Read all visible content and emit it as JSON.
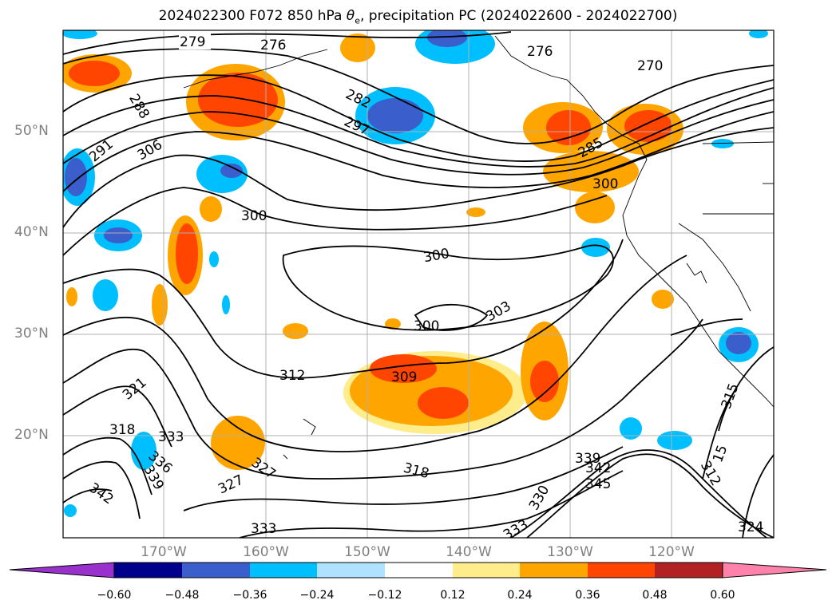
{
  "title_prefix": "2024022300 F072 850 hPa ",
  "title_symbol": "θ",
  "title_subscript": "e",
  "title_suffix": ", precipitation PC (2024022600 - 2024022700)",
  "lat_labels": [
    "50°N",
    "40°N",
    "30°N",
    "20°N"
  ],
  "lon_labels": [
    "170°W",
    "160°W",
    "150°W",
    "140°W",
    "130°W",
    "120°W"
  ],
  "contour_labels": [
    "279",
    "276",
    "288",
    "291",
    "306",
    "282",
    "297",
    "276",
    "270",
    "285",
    "300",
    "300",
    "300",
    "303",
    "300",
    "309",
    "312",
    "321",
    "318",
    "333",
    "336",
    "339",
    "342",
    "327",
    "327",
    "318",
    "330",
    "333",
    "339",
    "342",
    "345",
    "315",
    "312",
    "324",
    "333",
    "15"
  ],
  "colorbar": {
    "ticks": [
      "−0.60",
      "−0.48",
      "−0.36",
      "−0.24",
      "−0.12",
      "0.12",
      "0.24",
      "0.36",
      "0.48",
      "0.60"
    ],
    "colors": [
      "#9932cc",
      "#00008b",
      "#3a5fcd",
      "#00bfff",
      "#b0e2ff",
      "#ffffff",
      "#ffec8b",
      "#ffa500",
      "#ff4500",
      "#b22222",
      "#ff82ab"
    ]
  }
}
